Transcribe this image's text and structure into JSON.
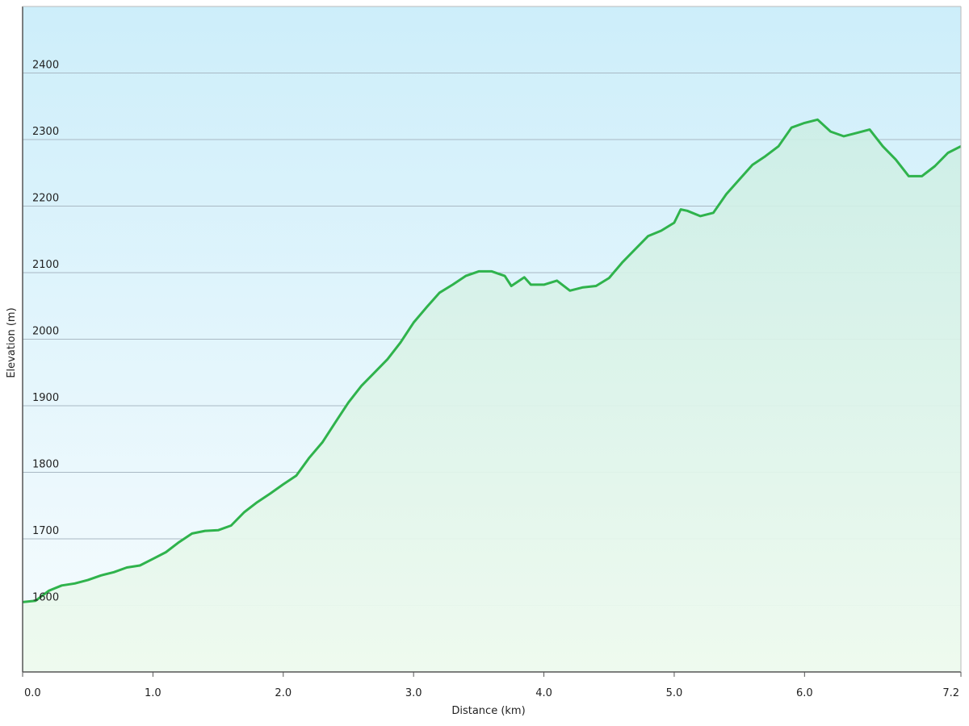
{
  "chart_data": {
    "type": "area",
    "xlabel": "Distance  (km)",
    "ylabel": "Elevation (m)",
    "x": [
      0.0,
      0.1,
      0.2,
      0.3,
      0.4,
      0.5,
      0.6,
      0.7,
      0.8,
      0.9,
      1.0,
      1.1,
      1.2,
      1.3,
      1.4,
      1.5,
      1.6,
      1.7,
      1.8,
      1.9,
      2.0,
      2.1,
      2.2,
      2.3,
      2.4,
      2.5,
      2.6,
      2.7,
      2.8,
      2.9,
      3.0,
      3.1,
      3.2,
      3.3,
      3.4,
      3.5,
      3.6,
      3.7,
      3.75,
      3.85,
      3.9,
      4.0,
      4.1,
      4.2,
      4.3,
      4.4,
      4.5,
      4.6,
      4.7,
      4.8,
      4.9,
      5.0,
      5.05,
      5.1,
      5.2,
      5.3,
      5.4,
      5.5,
      5.6,
      5.7,
      5.8,
      5.9,
      6.0,
      6.1,
      6.2,
      6.3,
      6.4,
      6.5,
      6.6,
      6.7,
      6.8,
      6.9,
      7.0,
      7.1,
      7.2
    ],
    "series": [
      {
        "name": "Elevation",
        "color": "#2fb34c",
        "values": [
          1605,
          1607,
          1622,
          1630,
          1633,
          1638,
          1645,
          1650,
          1657,
          1660,
          1670,
          1680,
          1695,
          1708,
          1712,
          1713,
          1720,
          1740,
          1755,
          1768,
          1782,
          1795,
          1822,
          1845,
          1875,
          1905,
          1930,
          1950,
          1970,
          1995,
          2025,
          2048,
          2070,
          2082,
          2095,
          2102,
          2102,
          2095,
          2080,
          2093,
          2082,
          2082,
          2088,
          2073,
          2078,
          2080,
          2092,
          2115,
          2135,
          2155,
          2163,
          2175,
          2195,
          2193,
          2185,
          2190,
          2218,
          2240,
          2262,
          2275,
          2290,
          2318,
          2325,
          2330,
          2312,
          2305,
          2310,
          2315,
          2290,
          2270,
          2245,
          2245,
          2260,
          2280,
          2290
        ]
      }
    ],
    "xlim": [
      0,
      7.2
    ],
    "xticks": [
      {
        "value": 0,
        "label": "0.0"
      },
      {
        "value": 1,
        "label": "1.0"
      },
      {
        "value": 2,
        "label": "2.0"
      },
      {
        "value": 3,
        "label": "3.0"
      },
      {
        "value": 4,
        "label": "4.0"
      },
      {
        "value": 5,
        "label": "5.0"
      },
      {
        "value": 6,
        "label": "6.0"
      },
      7.2
    ],
    "ylim": [
      1500,
      2500
    ],
    "yticks": [
      1600,
      1700,
      1800,
      1900,
      2000,
      2100,
      2200,
      2300,
      2400
    ],
    "grid": true
  }
}
